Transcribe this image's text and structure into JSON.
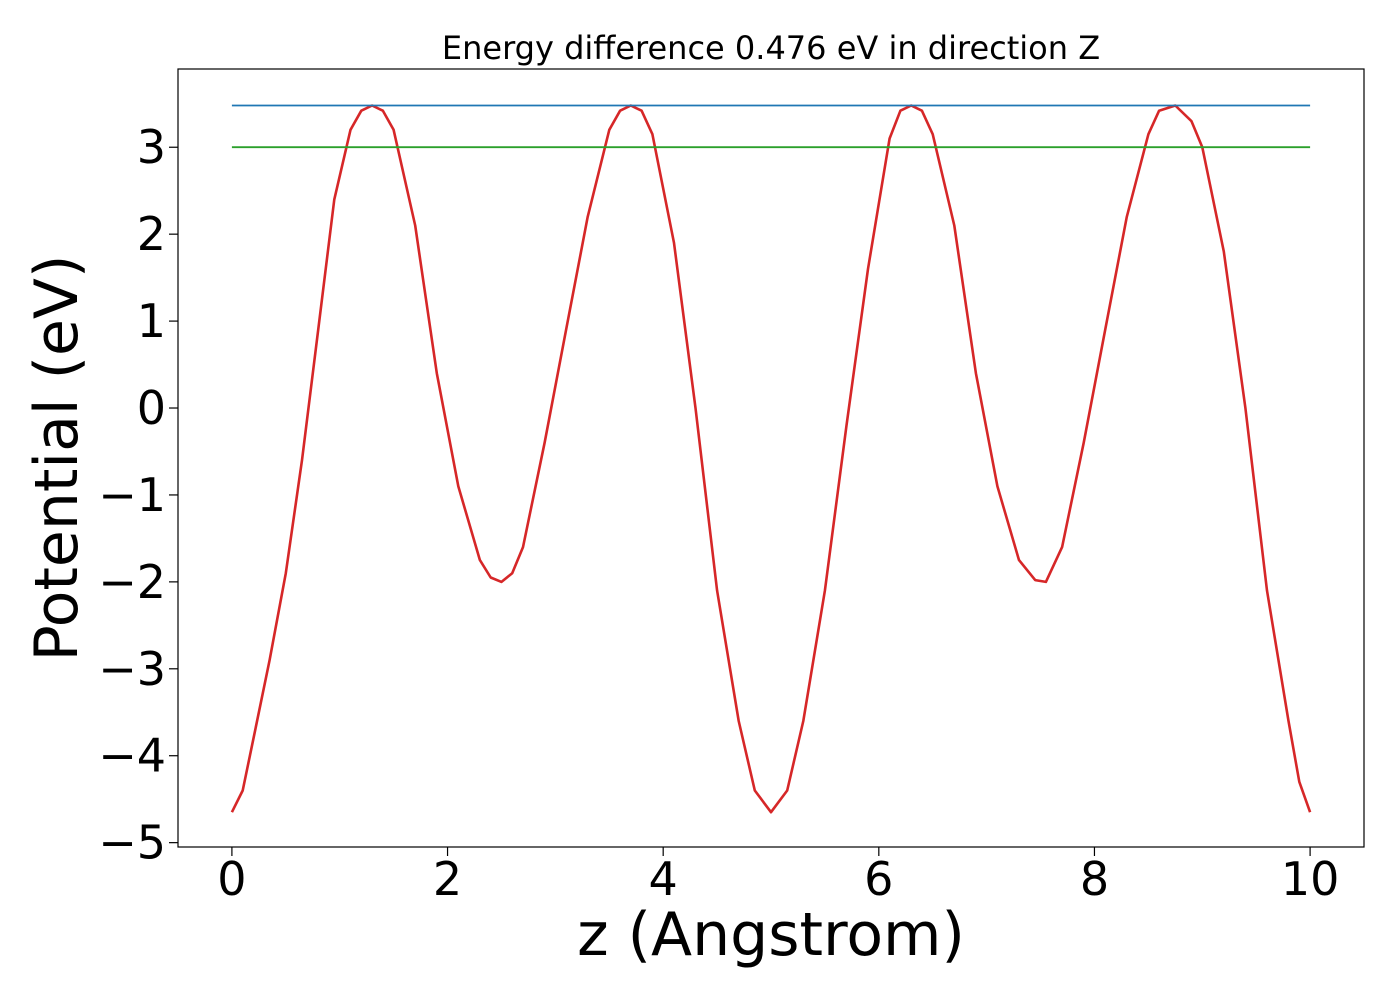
{
  "chart_data": {
    "type": "line",
    "title": "Energy difference 0.476 eV in direction Z",
    "xlabel": "z (Angstrom)",
    "ylabel": "Potential (eV)",
    "xlim": [
      -0.5,
      10.5
    ],
    "ylim": [
      -5.05,
      3.9
    ],
    "xticks": [
      0,
      2,
      4,
      6,
      8,
      10
    ],
    "xtick_labels": [
      "0",
      "2",
      "4",
      "6",
      "8",
      "10"
    ],
    "yticks": [
      -5,
      -4,
      -3,
      -2,
      -1,
      0,
      1,
      2,
      3
    ],
    "ytick_labels": [
      "−5",
      "−4",
      "−3",
      "−2",
      "−1",
      "0",
      "1",
      "2",
      "3"
    ],
    "grid": false,
    "legend": "none",
    "series": [
      {
        "color": "#d62728",
        "x": [
          0.0,
          0.1,
          0.2,
          0.35,
          0.5,
          0.65,
          0.8,
          0.95,
          1.1,
          1.2,
          1.3,
          1.4,
          1.5,
          1.7,
          1.9,
          2.1,
          2.3,
          2.4,
          2.5,
          2.6,
          2.7,
          2.9,
          3.1,
          3.3,
          3.5,
          3.6,
          3.7,
          3.8,
          3.9,
          4.1,
          4.3,
          4.5,
          4.7,
          4.85,
          5.0,
          5.15,
          5.3,
          5.5,
          5.7,
          5.9,
          6.1,
          6.2,
          6.3,
          6.4,
          6.5,
          6.7,
          6.9,
          7.1,
          7.3,
          7.45,
          7.55,
          7.7,
          7.9,
          8.1,
          8.3,
          8.5,
          8.6,
          8.75,
          8.9,
          9.0,
          9.2,
          9.4,
          9.6,
          9.8,
          9.9,
          10.0
        ],
        "y": [
          -4.65,
          -4.4,
          -3.8,
          -2.9,
          -1.9,
          -0.6,
          0.9,
          2.4,
          3.2,
          3.42,
          3.48,
          3.42,
          3.2,
          2.1,
          0.4,
          -0.9,
          -1.75,
          -1.95,
          -2.0,
          -1.9,
          -1.6,
          -0.4,
          0.9,
          2.2,
          3.2,
          3.42,
          3.48,
          3.42,
          3.15,
          1.9,
          0.0,
          -2.1,
          -3.6,
          -4.4,
          -4.65,
          -4.4,
          -3.6,
          -2.1,
          -0.2,
          1.6,
          3.1,
          3.42,
          3.48,
          3.42,
          3.15,
          2.1,
          0.4,
          -0.9,
          -1.75,
          -1.98,
          -2.0,
          -1.6,
          -0.4,
          0.9,
          2.2,
          3.15,
          3.42,
          3.48,
          3.3,
          3.0,
          1.8,
          0.0,
          -2.1,
          -3.6,
          -4.3,
          -4.65
        ]
      },
      {
        "color": "#1f77b4",
        "x": [
          0.0,
          10.0
        ],
        "y": [
          3.48,
          3.48
        ]
      },
      {
        "color": "#2ca02c",
        "x": [
          0.0,
          10.0
        ],
        "y": [
          3.0,
          3.0
        ]
      }
    ]
  }
}
